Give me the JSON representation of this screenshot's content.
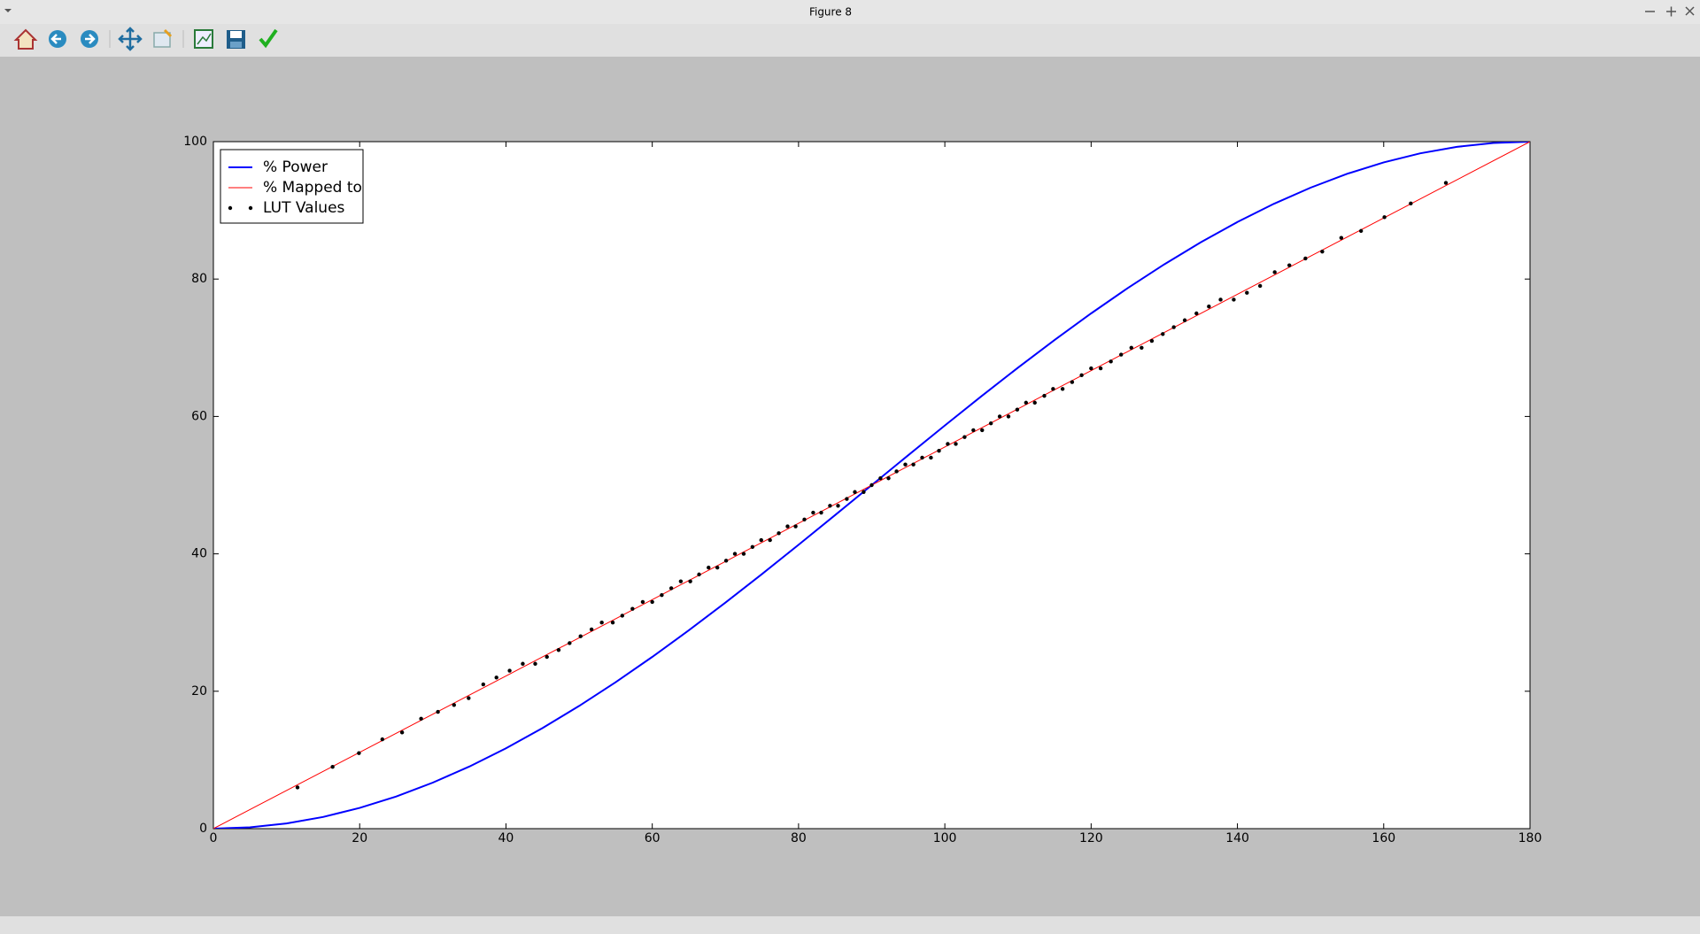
{
  "window": {
    "title": "Figure 8"
  },
  "chart_data": {
    "type": "line",
    "xlim": [
      0,
      180
    ],
    "ylim": [
      0,
      100
    ],
    "xticks": [
      0,
      20,
      40,
      60,
      80,
      100,
      120,
      140,
      160,
      180
    ],
    "yticks": [
      0,
      20,
      40,
      60,
      80,
      100
    ],
    "legend": "upper left",
    "series": [
      {
        "name": "% Power",
        "color": "#0000ff",
        "linewidth": 2,
        "x": [
          0,
          5,
          10,
          15,
          20,
          25,
          30,
          35,
          40,
          45,
          50,
          55,
          60,
          65,
          70,
          75,
          80,
          85,
          90,
          95,
          100,
          105,
          110,
          115,
          120,
          125,
          130,
          135,
          140,
          145,
          150,
          155,
          160,
          165,
          170,
          175,
          180
        ],
        "values": [
          0,
          0.19,
          0.76,
          1.7,
          3.02,
          4.68,
          6.7,
          9.04,
          11.7,
          14.64,
          17.86,
          21.32,
          25,
          28.87,
          32.9,
          37.06,
          41.32,
          45.64,
          50,
          54.36,
          58.68,
          62.94,
          67.1,
          71.13,
          75,
          78.68,
          82.14,
          85.36,
          88.3,
          90.96,
          93.3,
          95.32,
          96.98,
          98.3,
          99.24,
          99.81,
          100
        ]
      },
      {
        "name": "% Mapped to",
        "color": "#ff0000",
        "linewidth": 1,
        "x": [
          0,
          180
        ],
        "values": [
          0,
          100
        ]
      },
      {
        "name": "LUT Values",
        "color": "#000000",
        "marker": ".",
        "x": [
          11.5,
          16.3,
          19.9,
          23.1,
          25.8,
          28.4,
          30.7,
          32.9,
          34.9,
          36.9,
          38.7,
          40.5,
          42.3,
          44.0,
          45.6,
          47.2,
          48.7,
          50.2,
          51.7,
          53.1,
          54.6,
          55.9,
          57.3,
          58.7,
          60.0,
          61.3,
          62.6,
          63.9,
          65.2,
          66.4,
          67.7,
          68.9,
          70.1,
          71.3,
          72.5,
          73.7,
          74.9,
          76.1,
          77.3,
          78.5,
          79.6,
          80.8,
          82.0,
          83.1,
          84.3,
          85.4,
          86.6,
          87.7,
          88.9,
          90.0,
          91.2,
          92.3,
          93.4,
          94.6,
          95.7,
          96.9,
          98.1,
          99.2,
          100.4,
          101.5,
          102.7,
          103.9,
          105.1,
          106.3,
          107.5,
          108.7,
          109.9,
          111.1,
          112.3,
          113.6,
          114.8,
          116.1,
          117.4,
          118.7,
          120.0,
          121.3,
          122.7,
          124.1,
          125.5,
          126.9,
          128.3,
          129.8,
          131.3,
          132.8,
          134.4,
          136.1,
          137.7,
          139.5,
          141.3,
          143.1,
          145.1,
          147.1,
          149.3,
          151.6,
          154.2,
          156.9,
          160.1,
          163.7,
          168.5
        ],
        "values": [
          6,
          9,
          11,
          13,
          14,
          16,
          17,
          18,
          19,
          21,
          22,
          23,
          24,
          24,
          25,
          26,
          27,
          28,
          29,
          30,
          30,
          31,
          32,
          33,
          33,
          34,
          35,
          36,
          36,
          37,
          38,
          38,
          39,
          40,
          40,
          41,
          42,
          42,
          43,
          44,
          44,
          45,
          46,
          46,
          47,
          47,
          48,
          49,
          49,
          50,
          51,
          51,
          52,
          53,
          53,
          54,
          54,
          55,
          56,
          56,
          57,
          58,
          58,
          59,
          60,
          60,
          61,
          62,
          62,
          63,
          64,
          64,
          65,
          66,
          67,
          67,
          68,
          69,
          70,
          70,
          71,
          72,
          73,
          74,
          75,
          76,
          77,
          77,
          78,
          79,
          81,
          82,
          83,
          84,
          86,
          87,
          89,
          91,
          94
        ]
      }
    ]
  }
}
